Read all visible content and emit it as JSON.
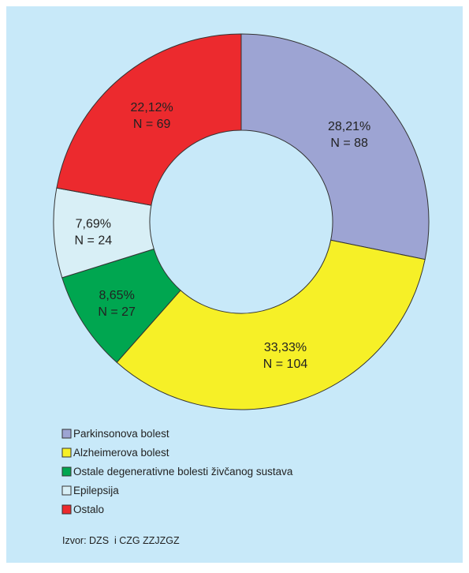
{
  "chart_data": {
    "type": "donut",
    "categories": [
      "Parkinsonova bolest",
      "Alzheimerova bolest",
      "Ostale degenerativne bolesti živčanog sustava",
      "Epilepsija",
      "Ostalo"
    ],
    "values": [
      28.21,
      33.33,
      8.65,
      7.69,
      22.12
    ],
    "value_labels": [
      "28,21%",
      "33,33%",
      "8,65%",
      "7,69%",
      "22,12%"
    ],
    "counts": [
      88,
      104,
      27,
      24,
      69
    ],
    "count_labels": [
      "N = 88",
      "N = 104",
      "N = 27",
      "N = 24",
      "N = 69"
    ],
    "colors": [
      "#9da4d3",
      "#f6f027",
      "#00a650",
      "#d8eff6",
      "#ec2a2e"
    ],
    "source": "Izvor: DZS  i CZG ZZJZGZ"
  }
}
